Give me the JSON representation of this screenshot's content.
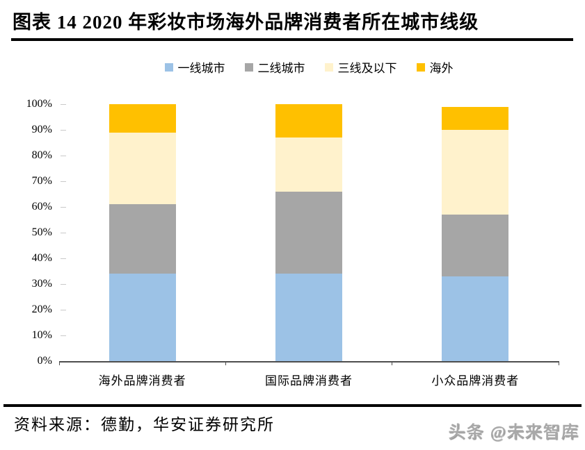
{
  "header": {
    "title": "图表 14 2020 年彩妆市场海外品牌消费者所在城市线级"
  },
  "chart_data": {
    "type": "bar",
    "stacked": true,
    "title": "2020 年彩妆市场海外品牌消费者所在城市线级",
    "categories": [
      "海外品牌消费者",
      "国际品牌消费者",
      "小众品牌消费者"
    ],
    "series": [
      {
        "name": "一线城市",
        "color": "#9CC2E6",
        "values": [
          34,
          34,
          33
        ]
      },
      {
        "name": "二线城市",
        "color": "#A6A6A6",
        "values": [
          27,
          32,
          24
        ]
      },
      {
        "name": "三线及以下",
        "color": "#FFF2CC",
        "values": [
          28,
          21,
          33
        ]
      },
      {
        "name": "海外",
        "color": "#FFC000",
        "values": [
          11,
          13,
          9
        ]
      }
    ],
    "xlabel": "",
    "ylabel": "",
    "ylim": [
      0,
      100
    ],
    "yticks": [
      "0%",
      "10%",
      "20%",
      "30%",
      "40%",
      "50%",
      "60%",
      "70%",
      "80%",
      "90%",
      "100%"
    ],
    "legend_position": "top",
    "grid": false,
    "axis_line_color": "#4d4d4d"
  },
  "footer": {
    "source": "资料来源：德勤，华安证券研究所",
    "watermark": "头条 @未来智库"
  }
}
